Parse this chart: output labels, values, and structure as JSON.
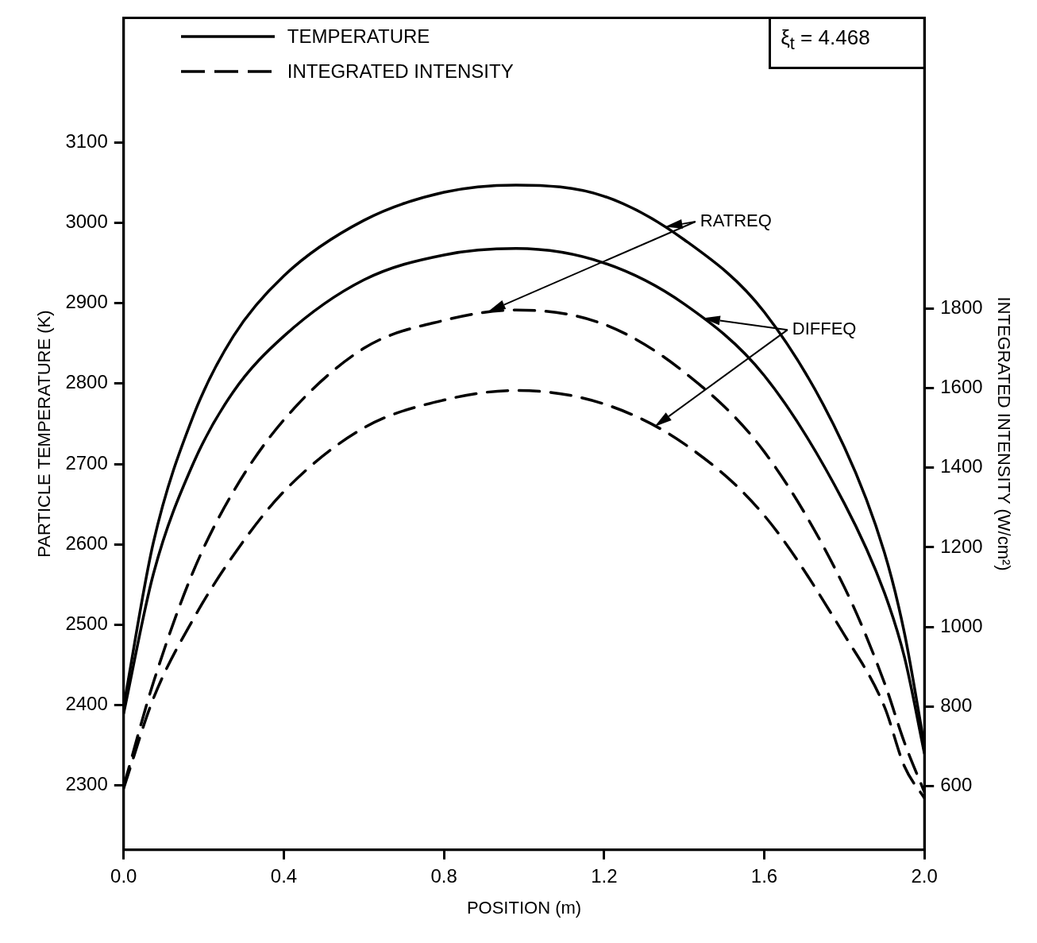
{
  "chart_data": {
    "type": "line",
    "xlabel": "POSITION (m)",
    "ylabel": "PARTICLE TEMPERATURE (K)",
    "y2label": "INTEGRATED INTENSITY (W/cm²)",
    "x": [
      0,
      0.074,
      0.174,
      0.274,
      0.4,
      0.6,
      0.8,
      0.98,
      1.2,
      1.4,
      1.6,
      1.8,
      1.9,
      1.95,
      2.0
    ],
    "series": [
      {
        "name": "TEMPERATURE",
        "color": "#000000",
        "line_style": "solid",
        "values": [
          2399,
          2602,
          2760,
          2859,
          2934,
          3003,
          3038,
          3047,
          3033,
          2979,
          2889,
          2721,
          2590,
          2490,
          2350
        ]
      },
      {
        "color": "#000000",
        "line_style": "solid",
        "values": [
          2390,
          2563,
          2701,
          2790,
          2859,
          2929,
          2960,
          2968,
          2950,
          2899,
          2810,
          2651,
          2540,
          2460,
          2340
        ]
      },
      {
        "name": "INTEGRATED INTENSITY",
        "color": "#000000",
        "line_style": "dashed",
        "axis": "y2",
        "values": [
          600,
          860,
          1140,
          1340,
          1520,
          1700,
          1770,
          1796,
          1760,
          1640,
          1440,
          1100,
          860,
          710,
          585
        ]
      },
      {
        "color": "#000000",
        "line_style": "dashed",
        "axis": "y2",
        "values": [
          595,
          820,
          1020,
          1180,
          1340,
          1500,
          1570,
          1594,
          1560,
          1460,
          1280,
          980,
          800,
          650,
          570
        ]
      }
    ],
    "xlim": [
      0,
      2.0
    ],
    "xticks": [
      {
        "value": 0,
        "label": "0.0"
      },
      0.4,
      0.8,
      1.2,
      1.6,
      {
        "value": 2,
        "label": "2.0"
      }
    ],
    "ylim": [
      2220,
      3255
    ],
    "yticks": [
      2300,
      2400,
      2500,
      2600,
      2700,
      2800,
      2900,
      3000,
      3100
    ],
    "y2lim": [
      440,
      2530
    ],
    "y2ticks": [
      600,
      800,
      1000,
      1200,
      1400,
      1600,
      1800
    ],
    "legend": "top left",
    "grid": false,
    "marker": "none",
    "annotations": [
      "RATREQ",
      "DIFFEQ",
      "ξ$_{t}$ = 4.468"
    ]
  }
}
